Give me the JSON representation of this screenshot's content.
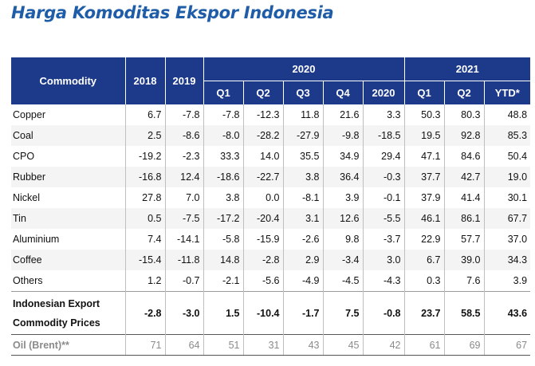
{
  "title": "Harga Komoditas Ekspor Indonesia",
  "header": {
    "commodity": "Commodity",
    "y2018": "2018",
    "y2019": "2019",
    "y2020": "2020",
    "y2021": "2021",
    "sub2020": [
      "Q1",
      "Q2",
      "Q3",
      "Q4",
      "2020"
    ],
    "sub2021": [
      "Q1",
      "Q2",
      "YTD*"
    ]
  },
  "rows": [
    {
      "name": "Copper",
      "values": [
        "6.7",
        "-7.8",
        "-7.8",
        "-12.3",
        "11.8",
        "21.6",
        "3.3",
        "50.3",
        "80.3",
        "48.8"
      ]
    },
    {
      "name": "Coal",
      "values": [
        "2.5",
        "-8.6",
        "-8.0",
        "-28.2",
        "-27.9",
        "-9.8",
        "-18.5",
        "19.5",
        "92.8",
        "85.3"
      ]
    },
    {
      "name": "CPO",
      "values": [
        "-19.2",
        "-2.3",
        "33.3",
        "14.0",
        "35.5",
        "34.9",
        "29.4",
        "47.1",
        "84.6",
        "50.4"
      ]
    },
    {
      "name": "Rubber",
      "values": [
        "-16.8",
        "12.4",
        "-18.6",
        "-22.7",
        "3.8",
        "36.4",
        "-0.3",
        "37.7",
        "42.7",
        "19.0"
      ]
    },
    {
      "name": "Nickel",
      "values": [
        "27.8",
        "7.0",
        "3.8",
        "0.0",
        "-8.1",
        "3.9",
        "-0.1",
        "37.9",
        "41.4",
        "30.1"
      ]
    },
    {
      "name": "Tin",
      "values": [
        "0.5",
        "-7.5",
        "-17.2",
        "-20.4",
        "3.1",
        "12.6",
        "-5.5",
        "46.1",
        "86.1",
        "67.7"
      ]
    },
    {
      "name": "Aluminium",
      "values": [
        "7.4",
        "-14.1",
        "-5.8",
        "-15.9",
        "-2.6",
        "9.8",
        "-3.7",
        "22.9",
        "57.7",
        "37.0"
      ]
    },
    {
      "name": "Coffee",
      "values": [
        "-15.4",
        "-11.8",
        "14.8",
        "-2.8",
        "2.9",
        "-3.4",
        "3.0",
        "6.7",
        "39.0",
        "34.3"
      ]
    },
    {
      "name": "Others",
      "values": [
        "1.2",
        "-0.7",
        "-2.1",
        "-5.6",
        "-4.9",
        "-4.5",
        "-4.3",
        "0.3",
        "7.6",
        "3.9"
      ]
    }
  ],
  "composite": {
    "name_line1": "Indonesian Export",
    "name_line2": "Commodity Prices",
    "values": [
      "-2.8",
      "-3.0",
      "1.5",
      "-10.4",
      "-1.7",
      "7.5",
      "-0.8",
      "23.7",
      "58.5",
      "43.6"
    ]
  },
  "oil": {
    "name": "Oil (Brent)**",
    "values": [
      "71",
      "64",
      "51",
      "31",
      "43",
      "45",
      "42",
      "61",
      "69",
      "67"
    ]
  }
}
